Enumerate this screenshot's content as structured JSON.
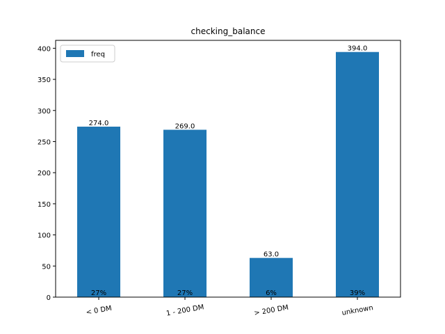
{
  "chart_data": {
    "type": "bar",
    "title": "checking_balance",
    "xlabel": "",
    "ylabel": "",
    "categories": [
      "< 0 DM",
      "1 - 200 DM",
      "> 200 DM",
      "unknown"
    ],
    "series": [
      {
        "name": "freq",
        "values": [
          274.0,
          269.0,
          63.0,
          394.0
        ],
        "value_labels": [
          "274.0",
          "269.0",
          "63.0",
          "394.0"
        ],
        "percent_labels": [
          "27%",
          "27%",
          "6%",
          "39%"
        ],
        "color": "#1f77b4"
      }
    ],
    "ylim": [
      0,
      412.7
    ],
    "yticks": [
      0,
      50,
      100,
      150,
      200,
      250,
      300,
      350,
      400
    ],
    "grid": false,
    "legend": "top-left",
    "x_tick_rotation_deg": -10
  }
}
